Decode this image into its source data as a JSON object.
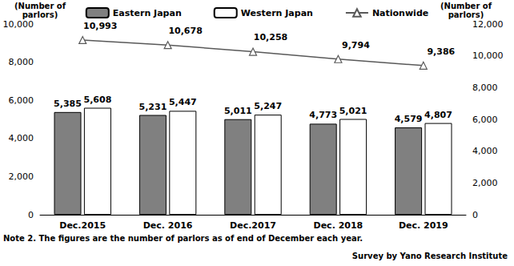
{
  "chart_data": {
    "type": "bar",
    "categories": [
      "Dec.2015",
      "Dec. 2016",
      "Dec.2017",
      "Dec. 2018",
      "Dec. 2019"
    ],
    "series": [
      {
        "name": "Eastern Japan",
        "type": "bar",
        "color": "#808080",
        "values": [
          5385,
          5231,
          5011,
          4773,
          4579
        ],
        "value_labels": [
          "5,385",
          "5,231",
          "5,011",
          "4,773",
          "4,579"
        ]
      },
      {
        "name": "Western Japan",
        "type": "bar",
        "color": "#ffffff",
        "values": [
          5608,
          5447,
          5247,
          5021,
          4807
        ],
        "value_labels": [
          "5,608",
          "5,447",
          "5,247",
          "5,021",
          "4,807"
        ]
      },
      {
        "name": "Nationwide",
        "type": "line",
        "axis": "y2",
        "color": "#595959",
        "marker": "triangle",
        "values": [
          10993,
          10678,
          10258,
          9794,
          9386
        ],
        "value_labels": [
          "10,993",
          "10,678",
          "10,258",
          "9,794",
          "9,386"
        ]
      }
    ],
    "ylabel": "(Number of\nparlors)",
    "y2label": "(Number of\nparlors)",
    "ylim": [
      0,
      10000
    ],
    "yticks": [
      0,
      {
        "value": 2000,
        "label": "2,000"
      },
      {
        "value": 4000,
        "label": "4,000"
      },
      {
        "value": 6000,
        "label": "6,000"
      },
      {
        "value": 8000,
        "label": "8,000"
      },
      {
        "value": 10000,
        "label": "10,000"
      }
    ],
    "y2lim": [
      0,
      12000
    ],
    "y2ticks": [
      0,
      {
        "value": 2000,
        "label": "2,000"
      },
      {
        "value": 4000,
        "label": "4,000"
      },
      {
        "value": 6000,
        "label": "6,000"
      },
      {
        "value": 8000,
        "label": "8,000"
      },
      {
        "value": 10000,
        "label": "10,000"
      },
      {
        "value": 12000,
        "label": "12,000"
      }
    ],
    "grid": false,
    "legend": "top",
    "data_labels": true,
    "annotations": [
      "Note 2. The figures are the number of parlors as of end of December each year.",
      "Survey by Yano Research Institute"
    ]
  }
}
